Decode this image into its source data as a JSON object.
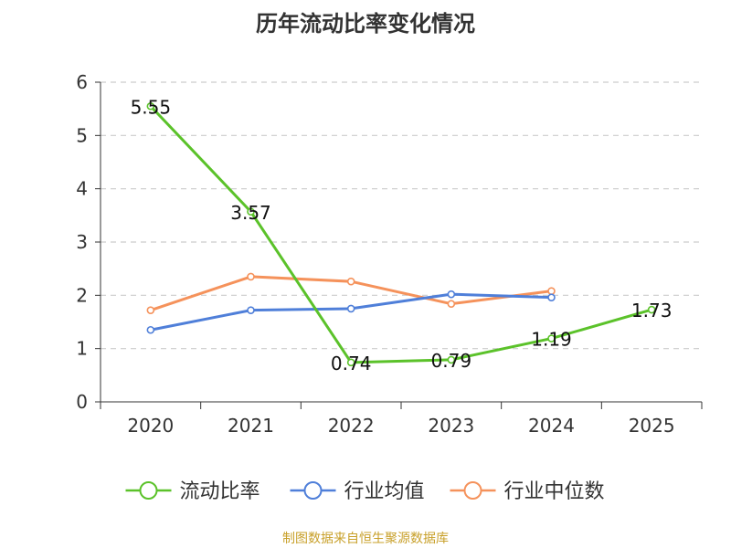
{
  "chart_data": {
    "type": "line",
    "title": "历年流动比率变化情况",
    "categories": [
      "2020",
      "2021",
      "2022",
      "2023",
      "2024",
      "2025"
    ],
    "ylim": [
      0,
      6
    ],
    "yticks": [
      0,
      1,
      2,
      3,
      4,
      5,
      6
    ],
    "grid": true,
    "legend_position": "bottom-center",
    "series": [
      {
        "name": "流动比率",
        "color": "#5bc22a",
        "values": [
          5.55,
          3.57,
          0.74,
          0.79,
          1.19,
          1.73
        ],
        "data_labels": [
          "5.55",
          "3.57",
          "0.74",
          "0.79",
          "1.19",
          "1.73"
        ]
      },
      {
        "name": "行业均值",
        "color": "#4f7fd9",
        "values": [
          1.35,
          1.72,
          1.75,
          2.02,
          1.96,
          null
        ]
      },
      {
        "name": "行业中位数",
        "color": "#f5925b",
        "values": [
          1.72,
          2.35,
          2.26,
          1.84,
          2.08,
          null
        ]
      }
    ]
  },
  "source": "制图数据来自恒生聚源数据库"
}
